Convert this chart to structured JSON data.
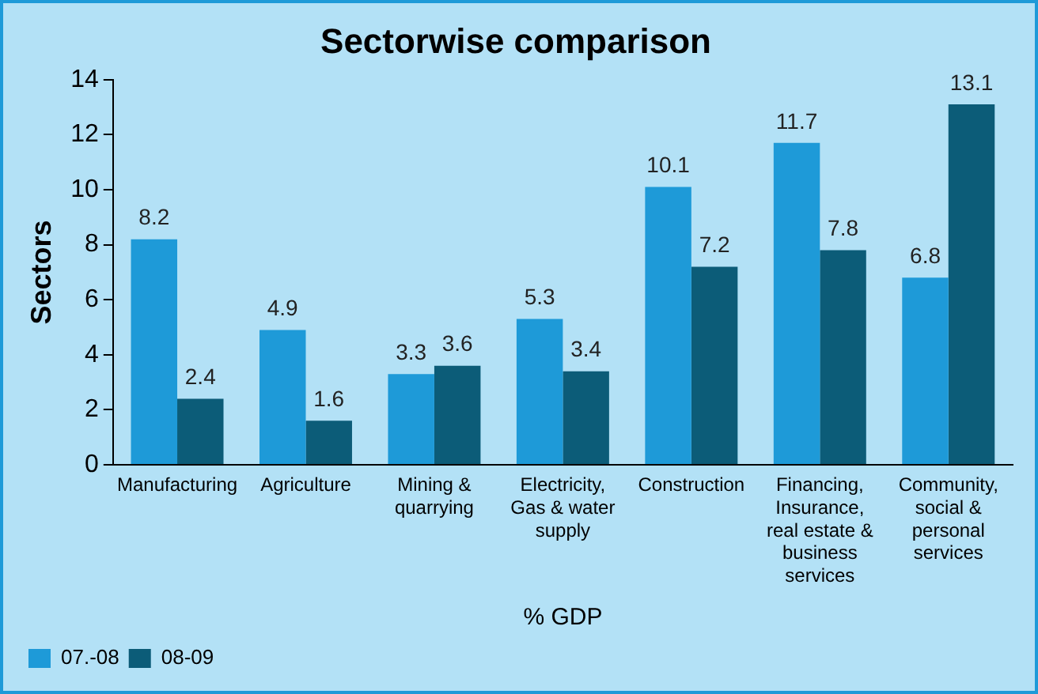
{
  "chart_data": {
    "type": "bar",
    "title": "Sectorwise comparison",
    "xlabel": "% GDP",
    "ylabel": "Sectors",
    "categories": [
      "Manufacturing",
      "Agriculture",
      "Mining & quarrying",
      "Electricity, Gas & water supply",
      "Construction",
      "Financing, Insurance, real estate & business services",
      "Community, social & personal services"
    ],
    "series": [
      {
        "name": "07.-08",
        "color": "#1e9ad8",
        "values": [
          8.2,
          4.9,
          3.3,
          5.3,
          10.1,
          11.7,
          6.8
        ]
      },
      {
        "name": "08-09",
        "color": "#0c5c78",
        "values": [
          2.4,
          1.6,
          3.6,
          3.4,
          7.2,
          7.8,
          13.1
        ]
      }
    ],
    "ylim": [
      0,
      14
    ],
    "yticks": [
      0,
      2,
      4,
      6,
      8,
      10,
      12,
      14
    ],
    "grid": false,
    "legend": "bottom left",
    "data_labels": true
  }
}
